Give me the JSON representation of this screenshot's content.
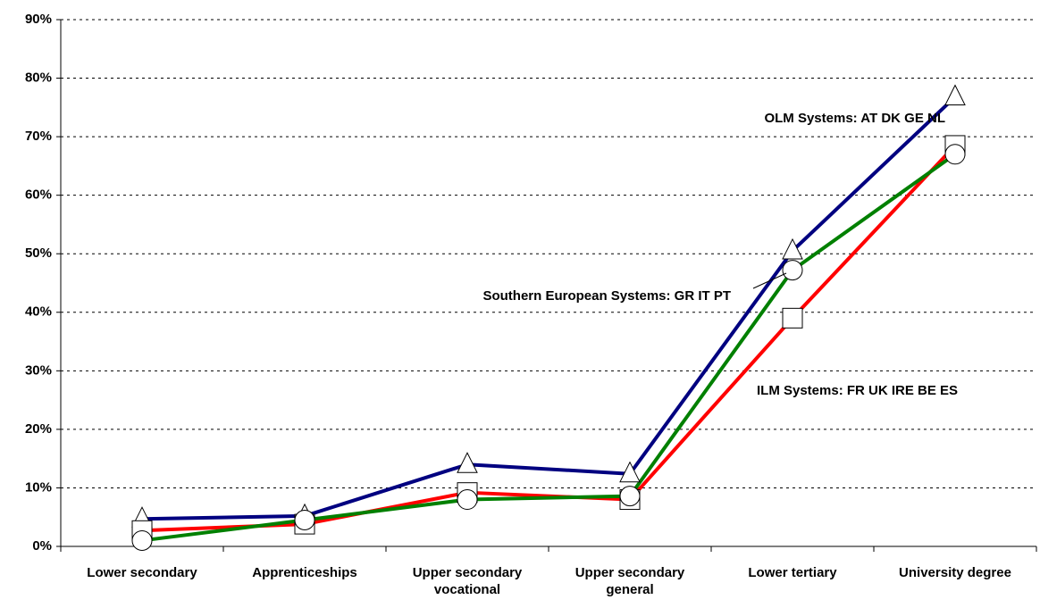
{
  "chart_data": {
    "type": "line",
    "categories": [
      "Lower secondary",
      "Apprenticeships",
      "Upper secondary vocational",
      "Upper secondary general",
      "Lower tertiary",
      "University degree"
    ],
    "series": [
      {
        "name": "OLM Systems: AT DK GE NL",
        "color": "#000080",
        "marker": "triangle",
        "values": [
          4.7,
          5.2,
          14.0,
          12.4,
          50.5,
          76.8
        ]
      },
      {
        "name": "ILM Systems: FR UK IRE BE ES",
        "color": "#ff0000",
        "marker": "square",
        "values": [
          2.7,
          3.8,
          9.2,
          8.0,
          39.0,
          68.5
        ]
      },
      {
        "name": "Southern European Systems: GR IT PT",
        "color": "#008000",
        "marker": "circle",
        "values": [
          1.0,
          4.5,
          8.0,
          8.6,
          47.2,
          67.0
        ]
      }
    ],
    "ylim": [
      0,
      90
    ],
    "yticks": [
      {
        "value": 0,
        "label": "0%"
      },
      {
        "value": 10,
        "label": "10%"
      },
      {
        "value": 20,
        "label": "20%"
      },
      {
        "value": 30,
        "label": "30%"
      },
      {
        "value": 40,
        "label": "40%"
      },
      {
        "value": 50,
        "label": "50%"
      },
      {
        "value": 60,
        "label": "60%"
      },
      {
        "value": 70,
        "label": "70%"
      },
      {
        "value": 80,
        "label": "80%"
      },
      {
        "value": 90,
        "label": "90%"
      }
    ],
    "grid": true
  }
}
